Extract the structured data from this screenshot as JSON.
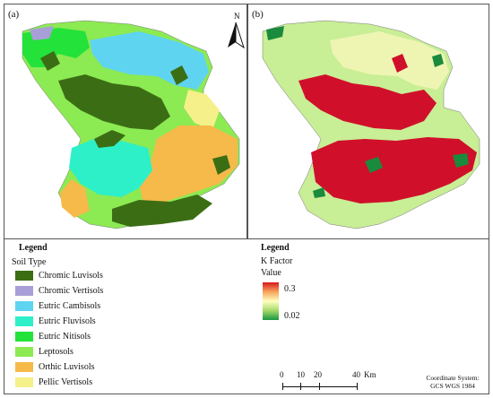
{
  "panels": {
    "a": {
      "label": "(a)"
    },
    "b": {
      "label": "(b)"
    }
  },
  "north_arrow": {
    "label": "N"
  },
  "legend_soil": {
    "title": "Legend",
    "subtitle": "Soil Type",
    "items": [
      {
        "label": "Chromic Luvisols",
        "color": "#3b6e14"
      },
      {
        "label": "Chromic Vertisols",
        "color": "#a99fd8"
      },
      {
        "label": "Eutric Cambisols",
        "color": "#5fd4f0"
      },
      {
        "label": "Eutric Fluvisols",
        "color": "#2ef0c8"
      },
      {
        "label": "Eutric Nitisols",
        "color": "#23e23a"
      },
      {
        "label": "Leptosols",
        "color": "#8cea52"
      },
      {
        "label": "Orthic Luvisols",
        "color": "#f5ba4a"
      },
      {
        "label": "Pellic Vertisols",
        "color": "#f5f08a"
      }
    ]
  },
  "legend_k": {
    "title": "Legend",
    "subtitle_1": "K Factor",
    "subtitle_2": "Value",
    "high": "0.3",
    "low": "0.02",
    "colors": {
      "high": "#d7191c",
      "mid": "#ffffbf",
      "low": "#1a9641"
    }
  },
  "scale": {
    "labels": [
      "0",
      "10",
      "20",
      "40"
    ],
    "unit": "Km"
  },
  "coordinate_system": {
    "line1": "Coordinate System:",
    "line2": "GCS WGS 1984"
  }
}
